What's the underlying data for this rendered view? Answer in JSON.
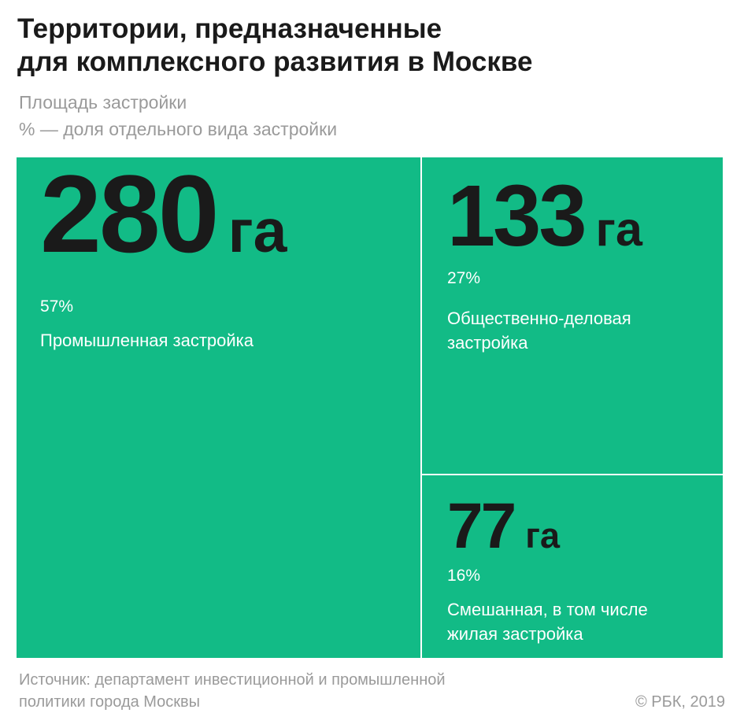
{
  "header": {
    "title_line1": "Территории, предназначенные",
    "title_line2": "для комплексного развития в Москве",
    "subtitle_line1": "Площадь застройки",
    "subtitle_line2": "% — доля отдельного вида застройки"
  },
  "colors": {
    "tile": "#12bb86",
    "divider": "#ffffff",
    "value_text": "#1a1a1a",
    "label_text": "#ffffff"
  },
  "chart_data": {
    "type": "treemap",
    "unit": "га",
    "items": [
      {
        "value": 280,
        "value_label": "280 га",
        "share": 57,
        "share_label": "57%",
        "label_lines": [
          "Промышленная застройка"
        ]
      },
      {
        "value": 133,
        "value_label": "133 га",
        "share": 27,
        "share_label": "27%",
        "label_lines": [
          "Общественно-деловая",
          "застройка"
        ]
      },
      {
        "value": 77,
        "value_label": "77 га",
        "share": 16,
        "share_label": "16%",
        "label_lines": [
          "Смешанная, в том числе",
          "жилая застройка"
        ]
      }
    ]
  },
  "footer": {
    "source_line1": "Источник: департамент инвестиционной и промышленной",
    "source_line2": "политики города Москвы",
    "copyright": "© РБК, 2019"
  }
}
